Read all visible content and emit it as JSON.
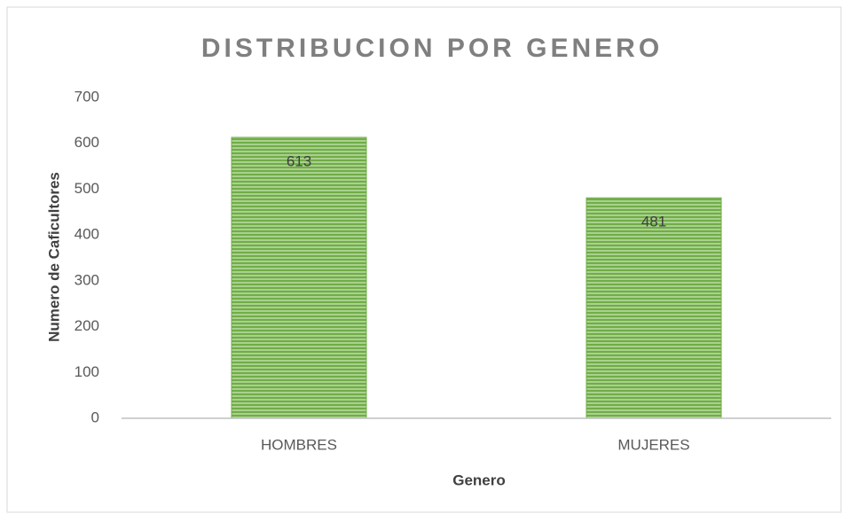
{
  "chart_data": {
    "type": "bar",
    "title": "DISTRIBUCION POR GENERO",
    "x_label": "Genero",
    "y_label": "Numero de Caficultores",
    "categories": [
      "HOMBRES",
      "MUJERES"
    ],
    "values": [
      613,
      481
    ],
    "color": "#70ad47",
    "ylim": [
      0,
      700
    ],
    "yticks": [
      0,
      100,
      200,
      300,
      400,
      500,
      600,
      700
    ],
    "grid": false
  }
}
